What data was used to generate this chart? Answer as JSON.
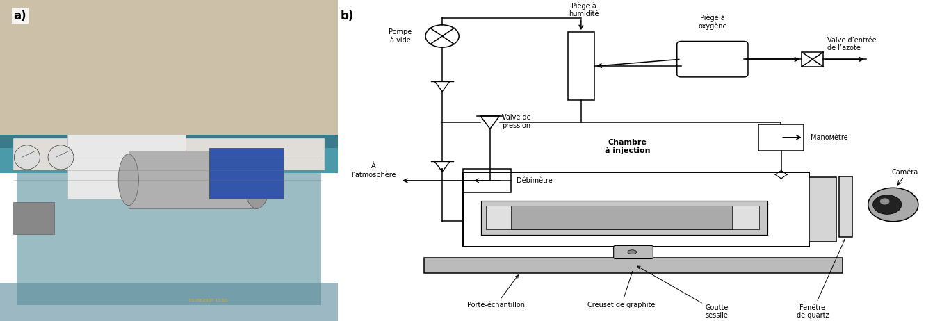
{
  "fig_width": 13.32,
  "fig_height": 4.62,
  "dpi": 100,
  "bg_color": "#ffffff",
  "label_a": "a)",
  "label_b": "b)",
  "labels": {
    "pompe_vide": "Pompe\nà vide",
    "piege_humidite": "Piège à\nhumidité",
    "piege_oxygene": "Piège à\noxygène",
    "valve_entree": "Valve d’entrée\nde l’azote",
    "valve_pression": "Valve de\npression",
    "a_atmosphere": "À\nl’atmosphère",
    "debimetre": "Débimètre",
    "chambre_injection": "Chambre\nà injection",
    "manometre": "Manoмètre",
    "camera": "Caméra",
    "porte_echantillon": "Porte-échantillon",
    "creuset_graphite": "Creuset de graphite",
    "goutte_sessile": "Goutte\nsessile",
    "fenetre_quartz": "Fenêtre\nde quartz"
  },
  "font_size_labels": 7.0,
  "font_size_ab": 12,
  "line_color": "#000000"
}
